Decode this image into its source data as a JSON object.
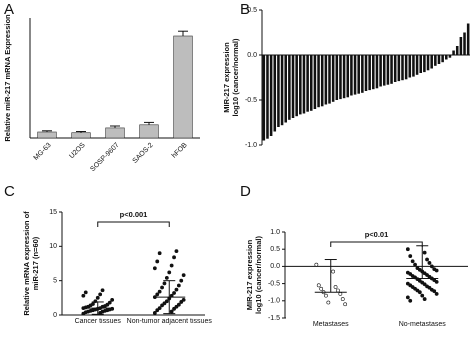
{
  "chart_data": [
    {
      "type": "bar",
      "panel": "A",
      "ylabel": [
        "Relative miR-217 mRNA Expression"
      ],
      "categories": [
        "MG-63",
        "U2OS",
        "SOSP-9607",
        "SAOS-2",
        "hFOB"
      ],
      "values": [
        0.25,
        0.22,
        0.42,
        0.55,
        4.25
      ],
      "errors": [
        0.05,
        0.05,
        0.08,
        0.1,
        0.2
      ],
      "color": "#bdbdbd",
      "ylim": [
        0,
        5
      ]
    },
    {
      "type": "bar",
      "panel": "B",
      "ylabel": [
        "MIR-217 expression",
        "log10 (cancer/normal)"
      ],
      "values": [
        -0.95,
        -0.93,
        -0.9,
        -0.85,
        -0.8,
        -0.78,
        -0.75,
        -0.72,
        -0.7,
        -0.68,
        -0.66,
        -0.65,
        -0.63,
        -0.62,
        -0.6,
        -0.58,
        -0.57,
        -0.55,
        -0.54,
        -0.52,
        -0.5,
        -0.49,
        -0.48,
        -0.47,
        -0.45,
        -0.44,
        -0.43,
        -0.42,
        -0.4,
        -0.39,
        -0.38,
        -0.37,
        -0.35,
        -0.34,
        -0.33,
        -0.32,
        -0.3,
        -0.29,
        -0.28,
        -0.27,
        -0.25,
        -0.24,
        -0.22,
        -0.2,
        -0.19,
        -0.17,
        -0.15,
        -0.12,
        -0.1,
        -0.08,
        -0.05,
        -0.03,
        0.05,
        0.1,
        0.2,
        0.25,
        0.35
      ],
      "color": "#111111",
      "ylim": [
        -1.0,
        0.5
      ],
      "yticks": [
        {
          "value": -1.0,
          "label": "-1.0"
        },
        -0.5,
        {
          "value": 0.0,
          "label": "0.0"
        },
        0.5
      ]
    },
    {
      "type": "dot",
      "panel": "C",
      "ylabel": [
        "Relative mRNA expression of",
        "miR-217 (n=60)"
      ],
      "annotation": "p<0.001",
      "error_bars": "both",
      "ylim": [
        0,
        15
      ],
      "yticks": [
        0,
        5,
        10,
        15
      ],
      "series": [
        {
          "name": "Cancer tissues",
          "color": "#111111",
          "marker": "filled",
          "mean": 1.0,
          "sd": 0.9,
          "values": [
            0.2,
            0.3,
            0.4,
            0.5,
            0.5,
            0.6,
            0.6,
            0.7,
            0.7,
            0.8,
            0.8,
            0.9,
            0.9,
            1.0,
            1.0,
            1.1,
            1.2,
            1.2,
            1.3,
            1.4,
            1.5,
            1.6,
            1.8,
            2.0,
            2.2,
            2.5,
            2.8,
            3.0,
            3.3,
            3.6
          ]
        },
        {
          "name": "Non-tumor adjacent tissues",
          "color": "#111111",
          "marker": "filled",
          "mean": 2.6,
          "sd": 2.4,
          "values": [
            0.3,
            0.5,
            0.7,
            0.9,
            1.0,
            1.2,
            1.4,
            1.5,
            1.7,
            1.9,
            2.0,
            2.2,
            2.4,
            2.6,
            2.8,
            3.0,
            3.2,
            3.4,
            3.7,
            4.0,
            4.3,
            4.6,
            5.0,
            5.4,
            5.8,
            6.2,
            6.8,
            7.2,
            7.8,
            8.4,
            9.0,
            9.3
          ]
        }
      ]
    },
    {
      "type": "dot",
      "panel": "D",
      "ylabel": [
        "MIR-217 expression",
        "log10 (cancer/normal)"
      ],
      "annotation": "p<0.01",
      "error_bars": "up",
      "ylim": [
        -1.5,
        1.0
      ],
      "yticks": [
        -1.5,
        {
          "value": -1.0,
          "label": "-1.0"
        },
        -0.5,
        {
          "value": 0.0,
          "label": "0.0"
        },
        0.5,
        {
          "value": 1.0,
          "label": "1.0"
        }
      ],
      "series": [
        {
          "name": "Metastases",
          "color": "#111111",
          "marker": "open",
          "mean": -0.75,
          "sd": 0.95,
          "values": [
            0.05,
            -0.15,
            -0.55,
            -0.6,
            -0.65,
            -0.7,
            -0.75,
            -0.8,
            -0.85,
            -0.95,
            -1.05,
            -1.1
          ]
        },
        {
          "name": "No-metastases",
          "color": "#111111",
          "marker": "filled",
          "mean": -0.35,
          "sd": 0.95,
          "values": [
            0.5,
            0.4,
            0.3,
            0.2,
            0.15,
            0.1,
            0.05,
            0.0,
            -0.05,
            -0.08,
            -0.1,
            -0.12,
            -0.15,
            -0.18,
            -0.2,
            -0.22,
            -0.25,
            -0.28,
            -0.3,
            -0.32,
            -0.35,
            -0.37,
            -0.4,
            -0.42,
            -0.45,
            -0.47,
            -0.5,
            -0.52,
            -0.55,
            -0.58,
            -0.6,
            -0.62,
            -0.65,
            -0.68,
            -0.7,
            -0.72,
            -0.75,
            -0.8,
            -0.85,
            -0.9,
            -0.95,
            -1.0
          ]
        }
      ]
    }
  ]
}
